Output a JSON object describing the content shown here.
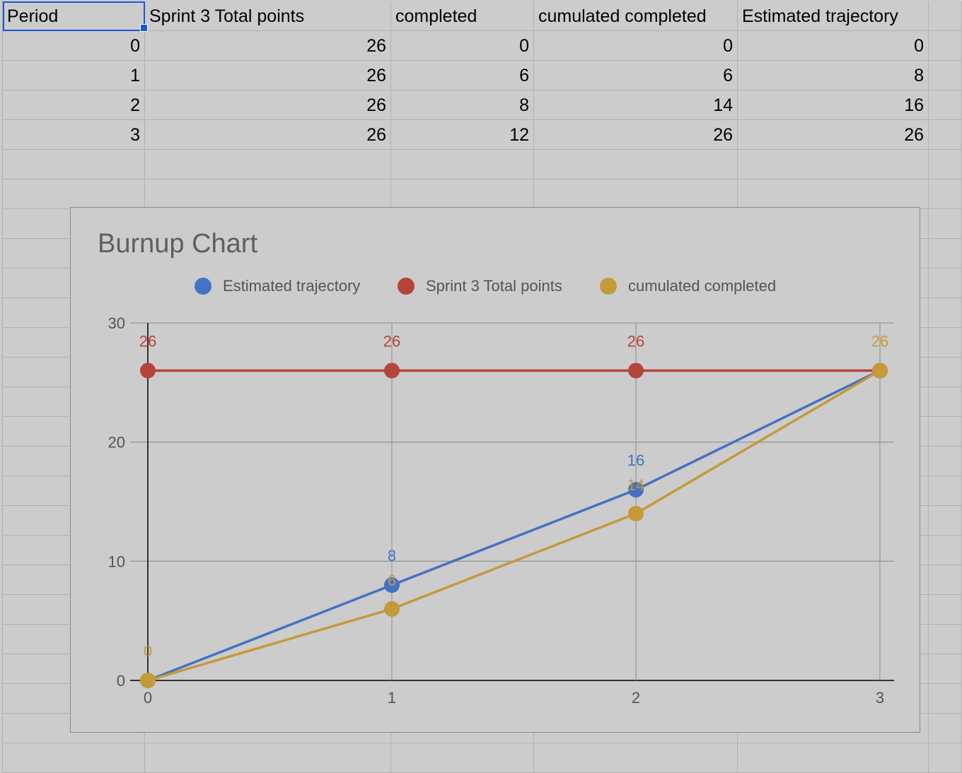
{
  "sheet": {
    "headers": [
      "Period",
      "Sprint 3 Total points",
      "completed",
      "cumulated completed",
      "Estimated trajectory"
    ],
    "rows": [
      [
        0,
        26,
        0,
        0,
        0
      ],
      [
        1,
        26,
        6,
        6,
        8
      ],
      [
        2,
        26,
        8,
        14,
        16
      ],
      [
        3,
        26,
        12,
        26,
        26
      ]
    ]
  },
  "chart": {
    "title": "Burnup Chart",
    "legend": [
      {
        "label": "Estimated trajectory",
        "color": "#4472c4"
      },
      {
        "label": "Sprint 3 Total points",
        "color": "#b5443a"
      },
      {
        "label": "cumulated completed",
        "color": "#c49a3a"
      }
    ]
  },
  "chart_data": {
    "type": "line",
    "title": "Burnup Chart",
    "x": [
      0,
      1,
      2,
      3
    ],
    "xlim": [
      0,
      3
    ],
    "ylim": [
      0,
      30
    ],
    "y_ticks": [
      0,
      10,
      20,
      30
    ],
    "grid": true,
    "legend_position": "top",
    "series": [
      {
        "name": "Estimated trajectory",
        "color": "#4472c4",
        "values": [
          0,
          8,
          16,
          26
        ],
        "labels": [
          "",
          "8",
          "16",
          ""
        ]
      },
      {
        "name": "Sprint 3 Total points",
        "color": "#b5443a",
        "values": [
          26,
          26,
          26,
          26
        ],
        "labels": [
          "26",
          "26",
          "26",
          ""
        ]
      },
      {
        "name": "cumulated completed",
        "color": "#c49a3a",
        "values": [
          0,
          6,
          14,
          26
        ],
        "labels": [
          "0",
          "6",
          "14",
          "26"
        ]
      }
    ]
  }
}
